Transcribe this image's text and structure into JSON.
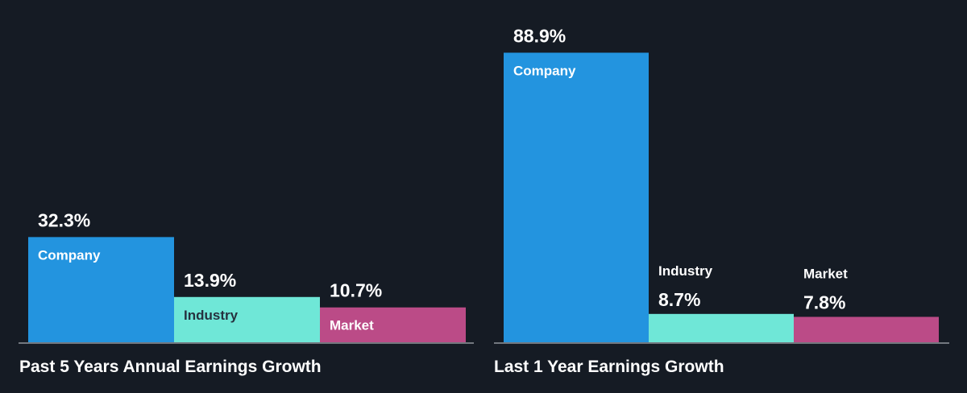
{
  "colors": {
    "background": "#151b24",
    "company": "#2394df",
    "industry": "#6fe7d7",
    "market": "#bb4b87",
    "baseline": "#d1d5da",
    "text_light": "#ffffff",
    "text_dark": "#26323f"
  },
  "chart_data": [
    {
      "type": "bar",
      "title": "Past 5 Years Annual Earnings Growth",
      "categories": [
        "Company",
        "Industry",
        "Market"
      ],
      "values": [
        32.3,
        13.9,
        10.7
      ],
      "value_labels": [
        "32.3%",
        "13.9%",
        "10.7%"
      ],
      "unit": "%",
      "ylim": [
        0,
        90
      ],
      "grid": false,
      "legend": "none (category labels inside bars)"
    },
    {
      "type": "bar",
      "title": "Last 1 Year Earnings Growth",
      "categories": [
        "Company",
        "Industry",
        "Market"
      ],
      "values": [
        88.9,
        8.7,
        7.8
      ],
      "value_labels": [
        "88.9%",
        "8.7%",
        "7.8%"
      ],
      "unit": "%",
      "ylim": [
        0,
        90
      ],
      "grid": false,
      "legend": "none (category labels inside bars)"
    }
  ]
}
